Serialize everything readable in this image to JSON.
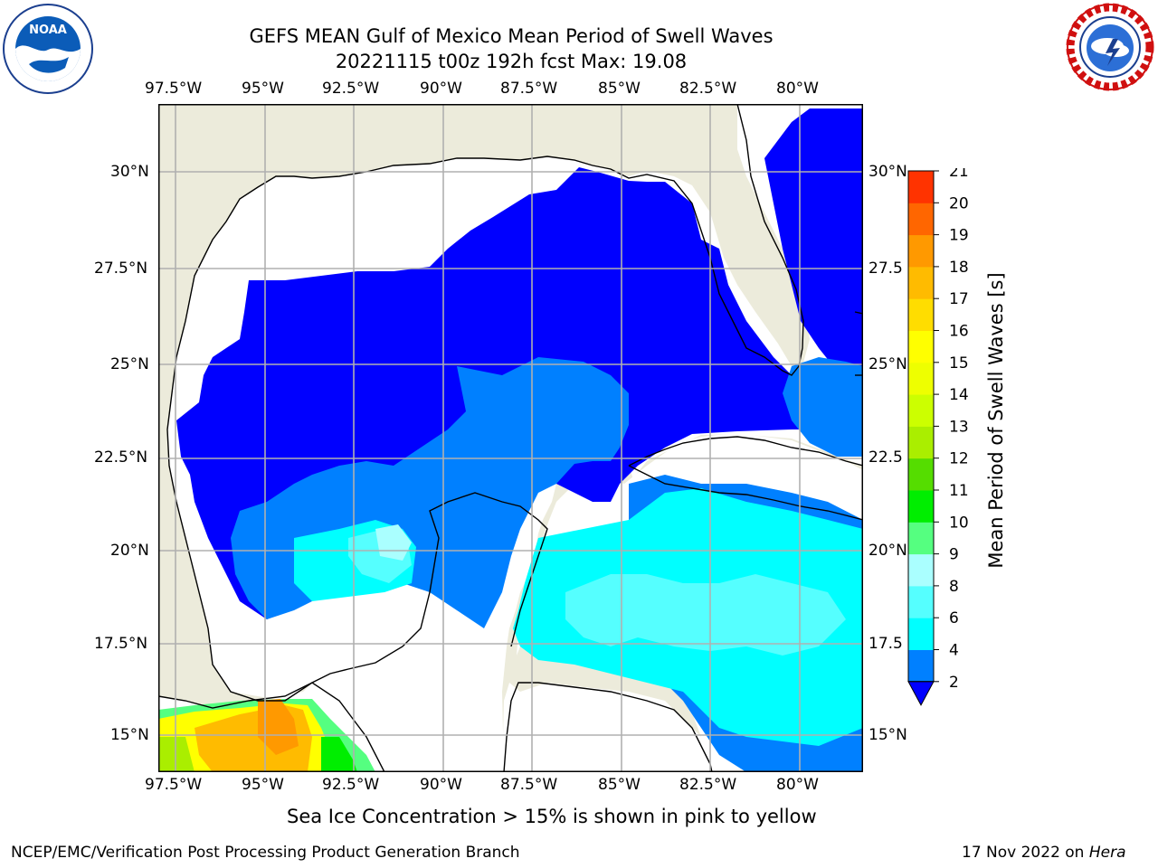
{
  "title": {
    "line1": "GEFS MEAN Gulf of Mexico Mean Period of Swell Waves",
    "line2": "20221115 t00z 192h fcst   Max: 19.08"
  },
  "logos": {
    "left": {
      "icon": "noaa-logo",
      "text": "NOAA",
      "ring_text": "NATIONAL OCEANIC AND ATMOSPHERIC ADMINISTRATION · U.S. DEPARTMENT OF COMMERCE"
    },
    "right": {
      "icon": "nws-logo",
      "ring_text": "NATIONAL WEATHER SERVICE"
    }
  },
  "map": {
    "lon_labels": [
      "97.5°W",
      "95°W",
      "92.5°W",
      "90°W",
      "87.5°W",
      "85°W",
      "82.5°W",
      "80°W"
    ],
    "lat_labels_left": [
      "30°N",
      "27.5°N",
      "25°N",
      "22.5°N",
      "20°N",
      "17.5°N",
      "15°N"
    ],
    "lat_labels_right": [
      "30°N",
      "27.5",
      "25°N",
      "22.5",
      "20°N",
      "17.5",
      "15°N"
    ],
    "colors": {
      "land": "#ecebdb",
      "coast": "#000000",
      "grid": "#b0b0b0",
      "blue_lt2": "#0000ff",
      "c2_4": "#0080ff",
      "c4_6": "#00ffff",
      "c6_8": "#55ffff",
      "c8_9": "#aaffff"
    }
  },
  "colorbar": {
    "label": "Mean Period of Swell Waves [s]",
    "ticks": [
      "2",
      "4",
      "6",
      "8",
      "9",
      "10",
      "11",
      "12",
      "13",
      "14",
      "15",
      "16",
      "17",
      "18",
      "19",
      "20",
      "21"
    ],
    "colors": [
      "#0080ff",
      "#00ffff",
      "#55ffff",
      "#aaffff",
      "#55ff80",
      "#00ee00",
      "#55dd00",
      "#aaee00",
      "#ccff00",
      "#eeff00",
      "#ffff00",
      "#ffdd00",
      "#ffbb00",
      "#ff9900",
      "#ff6600",
      "#ff3300",
      "#ff0000"
    ],
    "under_color": "#0000ff"
  },
  "note": "Sea Ice Concentration > 15% is shown in pink to yellow",
  "footer": {
    "left": "NCEP/EMC/Verification Post Processing Product Generation Branch",
    "date": "17 Nov 2022 on ",
    "host": "Hera"
  }
}
